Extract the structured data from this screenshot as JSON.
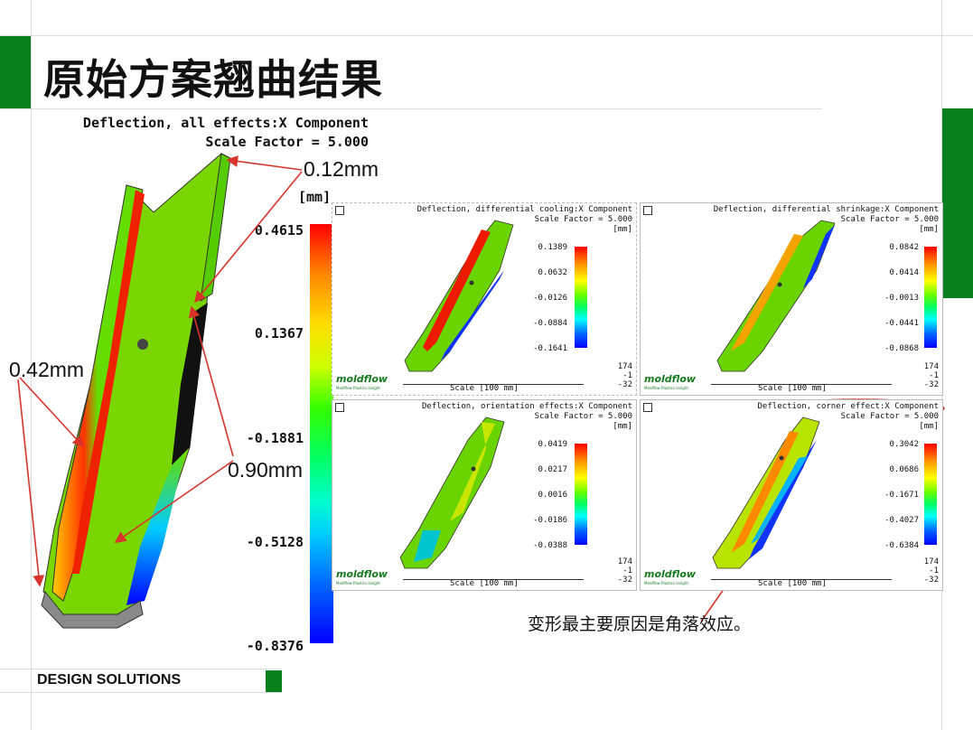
{
  "title": "原始方案翘曲结果",
  "main_plot": {
    "title_line1": "Deflection, all effects:X Component",
    "title_line2": "Scale Factor = 5.000",
    "unit": "[mm]",
    "ticks": [
      "0.4615",
      "0.1367",
      "-0.1881",
      "-0.5128",
      "-0.8376"
    ]
  },
  "annotations": {
    "top": "0.12mm",
    "left": "0.42mm",
    "middle": "0.90mm"
  },
  "panels": [
    {
      "title": "Deflection, differential cooling:X Component",
      "scale": "Scale Factor = 5.000",
      "unit": "[mm]",
      "ticks": [
        "0.1389",
        "0.0632",
        "-0.0126",
        "-0.0884",
        "-0.1641"
      ],
      "scale_bar": "Scale [100 mm]",
      "axis": [
        "174",
        "-1",
        "-32"
      ],
      "logo": "moldflow",
      "logo_sub": "Moldflow Plastics Insight"
    },
    {
      "title": "Deflection, differential shrinkage:X Component",
      "scale": "Scale Factor = 5.000",
      "unit": "[mm]",
      "ticks": [
        "0.0842",
        "0.0414",
        "-0.0013",
        "-0.0441",
        "-0.0868"
      ],
      "scale_bar": "Scale [100 mm]",
      "axis": [
        "174",
        "-1",
        "-32"
      ],
      "logo": "moldflow",
      "logo_sub": "Moldflow Plastics Insight"
    },
    {
      "title": "Deflection, orientation effects:X Component",
      "scale": "Scale Factor = 5.000",
      "unit": "[mm]",
      "ticks": [
        "0.0419",
        "0.0217",
        "0.0016",
        "-0.0186",
        "-0.0388"
      ],
      "scale_bar": "Scale [100 mm]",
      "axis": [
        "174",
        "-1",
        "-32"
      ],
      "logo": "moldflow",
      "logo_sub": "Moldflow Plastics Insight"
    },
    {
      "title": "Deflection, corner effect:X Component",
      "scale": "Scale Factor = 5.000",
      "unit": "[mm]",
      "ticks": [
        "0.3042",
        "0.0686",
        "-0.1671",
        "-0.4027",
        "-0.6384"
      ],
      "scale_bar": "Scale [100 mm]",
      "axis": [
        "174",
        "-1",
        "-32"
      ],
      "logo": "moldflow",
      "logo_sub": "Moldflow Plastics Insight"
    }
  ],
  "conclusion": "变形最主要原因是角落效应。",
  "footer": "DESIGN SOLUTIONS",
  "colors": {
    "brand_green": "#0a7f1e",
    "annotation_red": "#d8342c"
  }
}
